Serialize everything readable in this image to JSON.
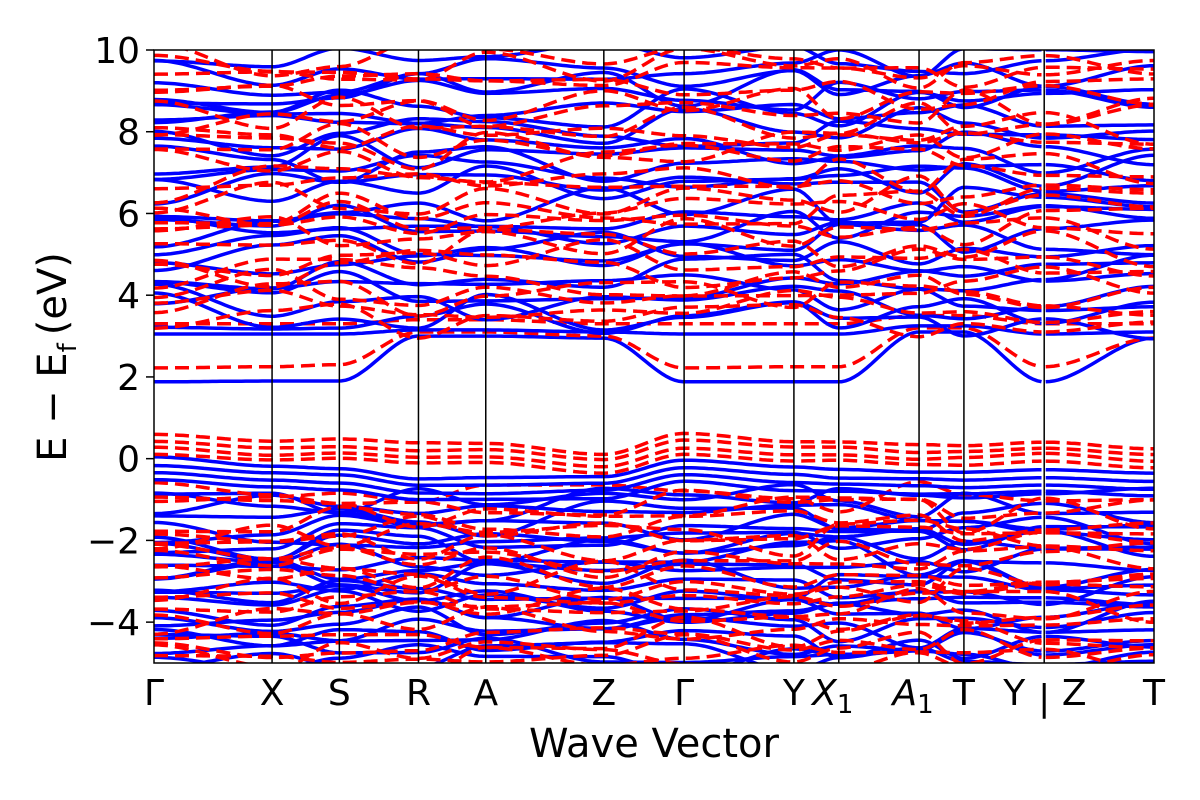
{
  "chart_data": {
    "type": "line",
    "title": "",
    "xlabel": "Wave Vector",
    "ylabel": "E − E",
    "ylabel_subscript": "f",
    "ylabel_unit": "(eV)",
    "ylim": [
      -5,
      10
    ],
    "yticks": [
      {
        "value": 10,
        "label": "10"
      },
      {
        "value": 8,
        "label": "8"
      },
      {
        "value": 6,
        "label": "6"
      },
      {
        "value": 4,
        "label": "4"
      },
      {
        "value": 2,
        "label": "2"
      },
      {
        "value": 0,
        "label": "0"
      },
      {
        "value": -2,
        "label": "−2"
      },
      {
        "value": -4,
        "label": "−4"
      }
    ],
    "kpath": [
      {
        "x": 0.0,
        "label": "Γ",
        "italic": false,
        "sub": ""
      },
      {
        "x": 1.0,
        "label": "X",
        "italic": false,
        "sub": ""
      },
      {
        "x": 1.57,
        "label": "S",
        "italic": false,
        "sub": ""
      },
      {
        "x": 2.24,
        "label": "R",
        "italic": false,
        "sub": ""
      },
      {
        "x": 2.81,
        "label": "A",
        "italic": false,
        "sub": ""
      },
      {
        "x": 3.81,
        "label": "Z",
        "italic": false,
        "sub": ""
      },
      {
        "x": 4.49,
        "label": "Γ",
        "italic": false,
        "sub": ""
      },
      {
        "x": 5.42,
        "label": "Y",
        "italic": false,
        "sub": ""
      },
      {
        "x": 5.8,
        "label": "X",
        "italic": true,
        "sub": "1"
      },
      {
        "x": 6.48,
        "label": "A",
        "italic": true,
        "sub": "1"
      },
      {
        "x": 6.86,
        "label": "T",
        "italic": false,
        "sub": ""
      },
      {
        "x": 7.54,
        "label": "Y",
        "italic": false,
        "sub": ""
      },
      {
        "x": 7.54,
        "label": "|",
        "italic": false,
        "sub": ""
      },
      {
        "x": 7.54,
        "label": "Z",
        "italic": false,
        "sub": ""
      },
      {
        "x": 8.47,
        "label": "T",
        "italic": false,
        "sub": ""
      }
    ],
    "xlim": [
      0,
      8.47
    ],
    "series": [
      {
        "style": "dashed",
        "color": "#ff0000"
      },
      {
        "style": "solid",
        "color": "#0000ff"
      }
    ],
    "notes_shapes": {
      "conduction_min_blue": [
        1.88,
        1.9,
        1.9,
        3.0,
        3.0,
        2.95,
        1.88,
        1.88,
        1.88,
        3.1,
        3.1,
        1.88,
        2.95,
        3.1
      ],
      "conduction_min_red": [
        2.22,
        2.25,
        2.3,
        3.1,
        3.1,
        3.0,
        2.22,
        2.25,
        2.25,
        3.2,
        3.2,
        2.25,
        2.95,
        3.2
      ],
      "valence_max_blue": [
        0.05,
        -0.15,
        -0.2,
        -0.45,
        -0.45,
        -0.4,
        0.0,
        -0.2,
        -0.25,
        -0.3,
        -0.3,
        -0.25,
        -0.35,
        -0.3
      ],
      "valence_max_red": [
        0.62,
        0.45,
        0.5,
        0.4,
        0.4,
        0.15,
        0.62,
        0.45,
        0.45,
        0.35,
        0.35,
        0.45,
        0.28,
        0.28
      ]
    }
  }
}
